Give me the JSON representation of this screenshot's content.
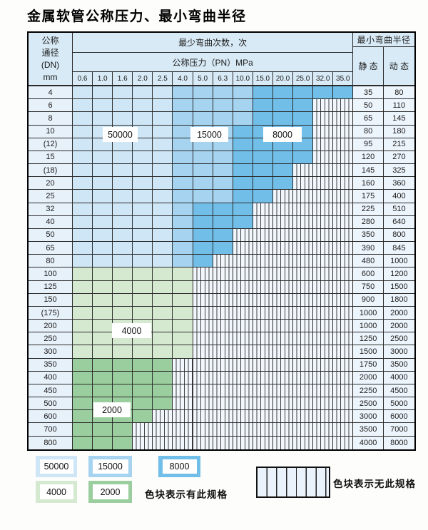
{
  "title": "金属软管公称压力、最小弯曲半径",
  "header": {
    "dn_lines": [
      "公称",
      "通径",
      "(DN)",
      "mm"
    ],
    "cycles_title": "最少弯曲次数，次",
    "pressure_title": "公称压力（PN）MPa",
    "radius_title": "最小弯曲半径",
    "static_label": "静 态",
    "dynamic_label": "动 态",
    "pressures": [
      "0.6",
      "1.0",
      "1.6",
      "2.0",
      "2.5",
      "4.0",
      "5.0",
      "6.3",
      "10.0",
      "15.0",
      "20.0",
      "25.0",
      "32.0",
      "35.0"
    ]
  },
  "chart_data": {
    "type": "table",
    "title": "金属软管公称压力、最小弯曲半径",
    "x_categories_pressure_PN_MPa": [
      0.6,
      1.0,
      1.6,
      2.0,
      2.5,
      4.0,
      5.0,
      6.3,
      10.0,
      15.0,
      20.0,
      25.0,
      32.0,
      35.0
    ],
    "zone_codes": {
      "b1": "最少弯曲次数 50000 次",
      "b2": "最少弯曲次数 15000 次",
      "b3": "最少弯曲次数 8000 次",
      "g1": "最少弯曲次数 4000 次",
      "g2": "最少弯曲次数 2000 次",
      "n": "无此规格"
    },
    "rows": [
      {
        "dn": "4",
        "spans": "b1*5 b2*4 b3*5",
        "static": "35",
        "dynamic": "80"
      },
      {
        "dn": "6",
        "spans": "b1*5 b2*4 b3*3",
        "static": "50",
        "dynamic": "110"
      },
      {
        "dn": "8",
        "spans": "b1*5 b2*4 b3*3",
        "static": "65",
        "dynamic": "145"
      },
      {
        "dn": "10",
        "spans": "b1*5 b2*3 b3*4",
        "static": "80",
        "dynamic": "180"
      },
      {
        "dn": "(12)",
        "spans": "b1*5 b2*3 b3*4",
        "static": "95",
        "dynamic": "215"
      },
      {
        "dn": "15",
        "spans": "b1*5 b2*3 b3*4",
        "static": "120",
        "dynamic": "270"
      },
      {
        "dn": "(18)",
        "spans": "b1*5 b2*3 b3*3",
        "static": "145",
        "dynamic": "325"
      },
      {
        "dn": "20",
        "spans": "b1*5 b2*3 b3*3",
        "static": "160",
        "dynamic": "360"
      },
      {
        "dn": "25",
        "spans": "b1*5 b2*3 b3*2",
        "static": "175",
        "dynamic": "400"
      },
      {
        "dn": "32",
        "spans": "b1*5 b2*1 b3*3",
        "static": "225",
        "dynamic": "510"
      },
      {
        "dn": "40",
        "spans": "b1*5 b2*1 b3*3",
        "static": "280",
        "dynamic": "640"
      },
      {
        "dn": "50",
        "spans": "b1*5 b2*1 b3*2",
        "static": "350",
        "dynamic": "800"
      },
      {
        "dn": "65",
        "spans": "b1*5 b2*1 b3*2",
        "static": "390",
        "dynamic": "845"
      },
      {
        "dn": "80",
        "spans": "b1*5 b2*1 b3*1",
        "static": "480",
        "dynamic": "1000"
      },
      {
        "dn": "100",
        "spans": "g1*6",
        "static": "600",
        "dynamic": "1200"
      },
      {
        "dn": "125",
        "spans": "g1*6",
        "static": "750",
        "dynamic": "1500"
      },
      {
        "dn": "150",
        "spans": "g1*6",
        "static": "900",
        "dynamic": "1800"
      },
      {
        "dn": "(175)",
        "spans": "g1*6",
        "static": "1000",
        "dynamic": "2000"
      },
      {
        "dn": "200",
        "spans": "g1*6",
        "static": "1000",
        "dynamic": "2000"
      },
      {
        "dn": "250",
        "spans": "g1*6",
        "static": "1250",
        "dynamic": "2500"
      },
      {
        "dn": "300",
        "spans": "g1*6",
        "static": "1500",
        "dynamic": "3000"
      },
      {
        "dn": "350",
        "spans": "g2*5",
        "static": "1750",
        "dynamic": "3500"
      },
      {
        "dn": "400",
        "spans": "g2*5",
        "static": "2000",
        "dynamic": "4000"
      },
      {
        "dn": "450",
        "spans": "g2*5",
        "static": "2250",
        "dynamic": "4500"
      },
      {
        "dn": "500",
        "spans": "g2*5",
        "static": "2500",
        "dynamic": "5000"
      },
      {
        "dn": "600",
        "spans": "g2*4",
        "static": "3000",
        "dynamic": "6000"
      },
      {
        "dn": "700",
        "spans": "g2*3",
        "static": "3500",
        "dynamic": "7000"
      },
      {
        "dn": "800",
        "spans": "g2*3",
        "static": "4000",
        "dynamic": "8000"
      }
    ]
  },
  "overlay_labels": {
    "l50000": "50000",
    "l15000": "15000",
    "l8000": "8000",
    "l4000": "4000",
    "l2000": "2000"
  },
  "legend": {
    "blocks": [
      {
        "label": "50000",
        "zone": "b1"
      },
      {
        "label": "15000",
        "zone": "b2"
      },
      {
        "label": "8000",
        "zone": "b3"
      },
      {
        "label": "4000",
        "zone": "g1"
      },
      {
        "label": "2000",
        "zone": "g2"
      }
    ],
    "has_spec_text": "色块表示有此规格",
    "no_spec_text": "色块表示无此规格"
  },
  "colors": {
    "zone_50000": "#cfe6f6",
    "zone_15000": "#a6d4f0",
    "zone_8000": "#71bfe9",
    "zone_4000": "#d5e9d1",
    "zone_2000": "#9bce9f",
    "no_spec_bg": "#f1f7fc",
    "header_bg": "#d8eaf6",
    "grid_line": "#2a2a2a"
  }
}
